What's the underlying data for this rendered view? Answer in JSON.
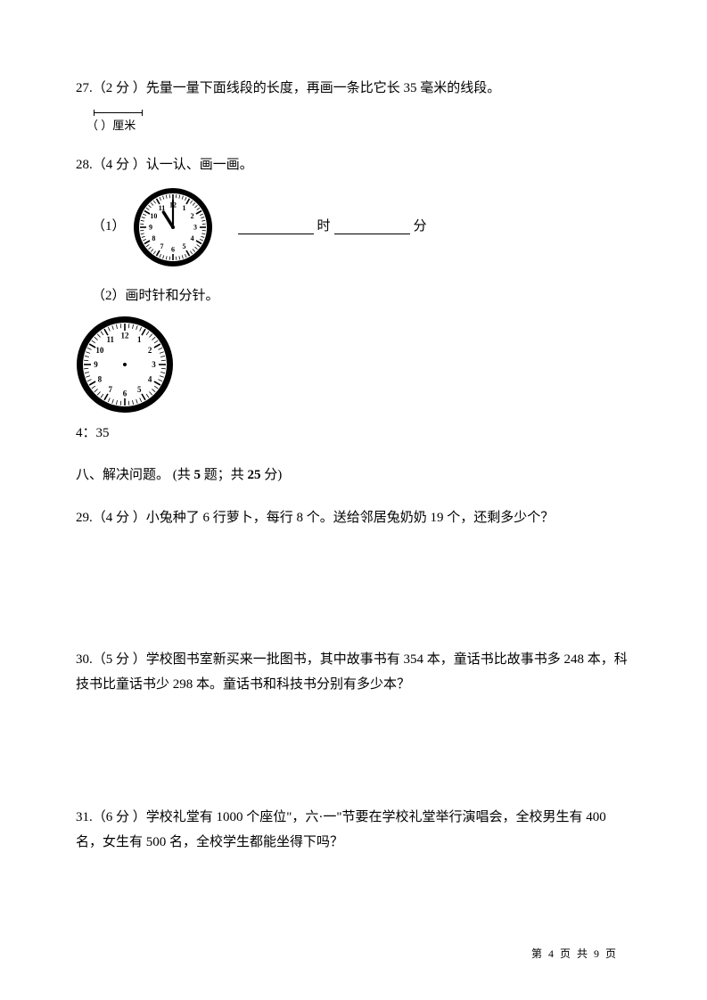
{
  "q27": {
    "text": "27.（2 分 ）先量一量下面线段的长度，再画一条比它长 35 毫米的线段。",
    "segment_label": "（      ）厘米"
  },
  "q28": {
    "text": "28.（4 分 ）认一认、画一画。",
    "sub1_label": "（1）",
    "hour_label": "时",
    "minute_label": "分",
    "sub2_label": "（2）画时针和分针。",
    "time_label": "4：35",
    "clock1": {
      "size": 90,
      "border_width": 6,
      "tick_len": 5,
      "num_fontsize": 8,
      "hour_hand_angle": -122,
      "hour_hand_len": 20,
      "minute_hand_angle": 0,
      "minute_hand_len": 30,
      "color": "#000000"
    },
    "clock2": {
      "size": 110,
      "border_width": 7,
      "tick_len": 6,
      "num_fontsize": 9,
      "has_hands": false,
      "color": "#000000"
    }
  },
  "section8": {
    "prefix": "八、解决问题。   (共 ",
    "bold1": "5",
    "mid": " 题；共 ",
    "bold2": "25",
    "suffix": " 分)"
  },
  "q29": {
    "text": "29.（4 分 ）小兔种了 6 行萝卜，每行 8 个。送给邻居兔奶奶 19 个，还剩多少个？"
  },
  "q30": {
    "text": "30.（5 分 ）学校图书室新买来一批图书，其中故事书有 354 本，童话书比故事书多 248 本，科技书比童话书少 298 本。童话书和科技书分别有多少本？"
  },
  "q31": {
    "text": "31.（6 分 ）学校礼堂有 1000 个座位\"，六·一\"节要在学校礼堂举行演唱会，全校男生有 400 名，女生有 500 名，全校学生都能坐得下吗？"
  },
  "footer": "第 4 页 共 9 页"
}
